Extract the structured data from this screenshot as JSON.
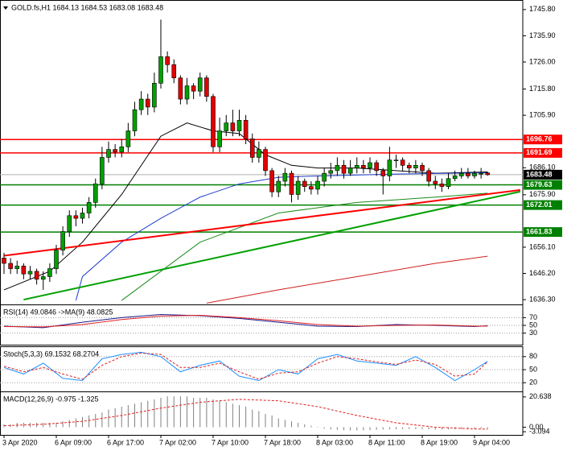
{
  "chart_data": [
    {
      "type": "candlestick",
      "title": "GOLD.fs,H1  1684.13 1684.53 1683.08 1683.48",
      "categories": [
        "3 Apr 2020",
        null,
        null,
        null,
        null,
        null,
        null,
        null,
        "6 Apr 09:00",
        null,
        null,
        null,
        null,
        null,
        null,
        null,
        "6 Apr 17:00",
        null,
        null,
        null,
        null,
        null,
        null,
        null,
        "7 Apr 02:00",
        null,
        null,
        null,
        null,
        null,
        null,
        null,
        "7 Apr 10:00",
        null,
        null,
        null,
        null,
        null,
        null,
        null,
        "7 Apr 18:00",
        null,
        null,
        null,
        null,
        null,
        null,
        null,
        "8 Apr 03:00",
        null,
        null,
        null,
        null,
        null,
        null,
        null,
        "8 Apr 11:00",
        null,
        null,
        null,
        null,
        null,
        null,
        null,
        "8 Apr 19:00",
        null,
        null,
        null,
        null,
        null,
        null,
        null,
        "9 Apr 04:00",
        null,
        null
      ],
      "open": [
        1652,
        1650,
        1648,
        1649,
        1646,
        1647,
        1644,
        1645,
        1648,
        1655,
        1662,
        1668,
        1667,
        1669,
        1673,
        1680,
        1690,
        1693,
        1692,
        1694,
        1700,
        1708,
        1712,
        1709,
        1718,
        1728,
        1725,
        1720,
        1712,
        1717,
        1715,
        1720,
        1713,
        1694,
        1700,
        1703,
        1700,
        1704,
        1697,
        1690,
        1693,
        1685,
        1677,
        1681,
        1684,
        1676,
        1681,
        1679,
        1678,
        1681,
        1684,
        1685,
        1687,
        1684,
        1686,
        1687,
        1686,
        1688,
        1685,
        1683,
        1689,
        1689,
        1687,
        1686,
        1687,
        1685,
        1681,
        1680,
        1679,
        1682,
        1683,
        1684,
        1683,
        1684,
        1684.13
      ],
      "high": [
        1654,
        1652,
        1651,
        1650,
        1649,
        1648,
        1647,
        1650,
        1657,
        1664,
        1670,
        1670,
        1671,
        1675,
        1682,
        1694,
        1696,
        1695,
        1697,
        1703,
        1711,
        1715,
        1714,
        1722,
        1742,
        1730,
        1727,
        1721,
        1720,
        1718,
        1722,
        1721,
        1714,
        1705,
        1706,
        1708,
        1708,
        1706,
        1699,
        1696,
        1694,
        1686,
        1683,
        1686,
        1685,
        1683,
        1682,
        1681,
        1683,
        1686,
        1688,
        1690,
        1689,
        1689,
        1690,
        1689,
        1690,
        1689,
        1686,
        1694,
        1691,
        1690,
        1688,
        1689,
        1688,
        1686,
        1683,
        1682,
        1684,
        1685,
        1686,
        1686,
        1685,
        1686,
        1684.53
      ],
      "low": [
        1646,
        1646,
        1646,
        1644,
        1644,
        1642,
        1640,
        1643,
        1646,
        1653,
        1660,
        1664,
        1665,
        1667,
        1671,
        1678,
        1688,
        1690,
        1690,
        1692,
        1698,
        1706,
        1706,
        1707,
        1716,
        1722,
        1718,
        1710,
        1710,
        1712,
        1713,
        1711,
        1692,
        1692,
        1698,
        1698,
        1698,
        1695,
        1688,
        1688,
        1683,
        1675,
        1675,
        1679,
        1673,
        1674,
        1677,
        1676,
        1676,
        1679,
        1682,
        1683,
        1682,
        1683,
        1684,
        1684,
        1684,
        1683,
        1676,
        1681,
        1686,
        1685,
        1684,
        1684,
        1683,
        1679,
        1678,
        1677,
        1678,
        1681,
        1682,
        1682,
        1682,
        1682,
        1683.08
      ],
      "close": [
        1650,
        1648,
        1649,
        1646,
        1647,
        1644,
        1645,
        1648,
        1655,
        1662,
        1668,
        1667,
        1669,
        1673,
        1680,
        1690,
        1693,
        1692,
        1694,
        1700,
        1708,
        1712,
        1709,
        1718,
        1728,
        1725,
        1720,
        1712,
        1717,
        1715,
        1720,
        1713,
        1694,
        1700,
        1703,
        1700,
        1704,
        1697,
        1690,
        1693,
        1685,
        1677,
        1681,
        1684,
        1676,
        1681,
        1679,
        1678,
        1681,
        1684,
        1685,
        1687,
        1684,
        1686,
        1687,
        1686,
        1688,
        1685,
        1683,
        1689,
        1689,
        1687,
        1686,
        1687,
        1685,
        1681,
        1680,
        1679,
        1682,
        1683,
        1684,
        1683,
        1684,
        1684,
        1683.48
      ],
      "up_color": "#00a000",
      "down_color": "#e00000",
      "ylim": [
        1634.5,
        1748.8
      ],
      "yticks": [
        {
          "value": 1745.8,
          "label": "1745.80"
        },
        {
          "value": 1735.9,
          "label": "1735.90"
        },
        {
          "value": 1726,
          "label": "1726.00"
        },
        {
          "value": 1715.8,
          "label": "1715.80"
        },
        {
          "value": 1705.9,
          "label": "1705.90"
        },
        {
          "value": 1686.1,
          "label": "1686.10"
        },
        {
          "value": 1675.9,
          "label": "1675.90"
        },
        {
          "value": 1656.1,
          "label": "1656.10"
        },
        {
          "value": 1646.2,
          "label": "1646.20"
        },
        {
          "value": 1636.3,
          "label": "1636.30"
        }
      ],
      "horizontal_lines": [
        {
          "value": 1696.76,
          "color": "#ff0000"
        },
        {
          "value": 1691.69,
          "color": "#ff0000"
        },
        {
          "value": 1679.63,
          "color": "#008000"
        },
        {
          "value": 1672.01,
          "color": "#008000"
        },
        {
          "value": 1661.83,
          "color": "#008000"
        }
      ],
      "last_price": 1683.48,
      "moving_averages": [
        {
          "color": "#000000",
          "x": [
            0,
            7,
            12,
            18,
            24,
            28,
            32,
            36,
            40,
            44,
            48,
            54,
            60,
            66,
            74
          ],
          "values": [
            1640,
            1647,
            1658,
            1676,
            1698,
            1703,
            1700,
            1699,
            1691,
            1687,
            1686,
            1686,
            1685,
            1684,
            1684.5
          ]
        },
        {
          "color": "#1f3fd0",
          "x": [
            11,
            12,
            18,
            24,
            30,
            36,
            42,
            48,
            60,
            74
          ],
          "values": [
            1636,
            1645,
            1658,
            1667,
            1675,
            1680,
            1682.5,
            1683,
            1683.7,
            1684.2
          ]
        },
        {
          "color": "#1a8a1a",
          "x": [
            18,
            30,
            42,
            54,
            66,
            74
          ],
          "values": [
            1636,
            1658,
            1669,
            1673,
            1675,
            1676.5
          ]
        },
        {
          "color": "#d02020",
          "x": [
            31,
            42,
            54,
            66,
            74
          ],
          "values": [
            1635,
            1640,
            1645,
            1650,
            1652.7
          ]
        }
      ],
      "trendlines": [
        {
          "color": "#ff0000",
          "x": [
            0,
            79
          ],
          "values": [
            1652.9,
            1677.7
          ]
        },
        {
          "color": "#00a000",
          "x": [
            3,
            79
          ],
          "values": [
            1636.3,
            1677.1
          ]
        }
      ]
    },
    {
      "type": "line",
      "title": "RSI(14) 49.0846 ->MA(9) 48.0825",
      "ylim": [
        0,
        100
      ],
      "yticks": [
        70,
        50,
        30
      ],
      "grid": true,
      "series": [
        {
          "color": "#1a1a8c",
          "dash": false,
          "x": [
            0,
            6,
            12,
            18,
            24,
            30,
            36,
            42,
            48,
            54,
            60,
            66,
            72,
            74
          ],
          "values": [
            48,
            44,
            58,
            70,
            78,
            75,
            68,
            58,
            48,
            47,
            52,
            50,
            47,
            49.0846
          ]
        },
        {
          "color": "#e02020",
          "dash": false,
          "x": [
            0,
            6,
            12,
            18,
            24,
            30,
            36,
            42,
            48,
            54,
            60,
            66,
            72,
            74
          ],
          "values": [
            47,
            46,
            52,
            65,
            74,
            76,
            70,
            62,
            52,
            48,
            50,
            51,
            48,
            48.0825
          ]
        }
      ]
    },
    {
      "type": "line",
      "title": "Stoch(5,3,3) 69.1532 68.2704",
      "ylim": [
        0,
        100
      ],
      "yticks": [
        80,
        50,
        20
      ],
      "grid": true,
      "series": [
        {
          "color": "#1e90ff",
          "dash": false,
          "x": [
            0,
            3,
            6,
            9,
            12,
            15,
            18,
            21,
            24,
            27,
            30,
            33,
            36,
            39,
            42,
            45,
            48,
            51,
            54,
            57,
            60,
            63,
            66,
            69,
            72,
            74
          ],
          "values": [
            55,
            40,
            65,
            30,
            25,
            75,
            85,
            90,
            80,
            45,
            60,
            70,
            35,
            25,
            50,
            40,
            75,
            85,
            70,
            65,
            60,
            80,
            55,
            25,
            50,
            69.1532
          ]
        },
        {
          "color": "#e02020",
          "dash": true,
          "x": [
            0,
            3,
            6,
            9,
            12,
            15,
            18,
            21,
            24,
            27,
            30,
            33,
            36,
            39,
            42,
            45,
            48,
            51,
            54,
            57,
            60,
            63,
            66,
            69,
            72,
            74
          ],
          "values": [
            58,
            45,
            55,
            40,
            28,
            60,
            80,
            88,
            85,
            55,
            55,
            65,
            45,
            28,
            42,
            45,
            65,
            80,
            75,
            68,
            62,
            72,
            62,
            35,
            40,
            68.2704
          ]
        }
      ]
    },
    {
      "type": "bar",
      "title": "MACD(12,26,9) -0.975 -1.325",
      "ylim": [
        -5.25,
        23.3
      ],
      "yticks": [
        20.638,
        {
          "value": 0,
          "label": "0.00"
        },
        -3.094
      ],
      "grid": false,
      "series": [
        {
          "type": "bar",
          "color": "#808080",
          "values": [
            2,
            2,
            3,
            3,
            3,
            3,
            3,
            3,
            3,
            4,
            5,
            6,
            7,
            8,
            9,
            10,
            12,
            13,
            14,
            15,
            16,
            17,
            18,
            19,
            20,
            21,
            21,
            21,
            21,
            20,
            20,
            20,
            19,
            18,
            17,
            16,
            15,
            14,
            12,
            11,
            9,
            8,
            6,
            5,
            4,
            3,
            2,
            1,
            0,
            -1,
            -1.5,
            -1.8,
            -2,
            -2.2,
            -2.2,
            -2.1,
            -2,
            -1.8,
            -1.6,
            -1.5,
            -1.4,
            -1.4,
            -1.3,
            -1.3,
            -1.4,
            -1.5,
            -1.6,
            -1.6,
            -1.5,
            -1.4,
            -1.3,
            -1.2,
            -1.1,
            -1,
            -0.975
          ]
        },
        {
          "type": "line",
          "color": "#e02020",
          "dash": true,
          "x": [
            0,
            6,
            12,
            18,
            24,
            30,
            36,
            42,
            48,
            54,
            60,
            66,
            72,
            74
          ],
          "values": [
            1,
            2,
            4,
            8,
            13,
            17,
            19,
            18,
            14,
            8,
            3,
            0,
            -1.2,
            -1.325
          ]
        }
      ]
    }
  ]
}
